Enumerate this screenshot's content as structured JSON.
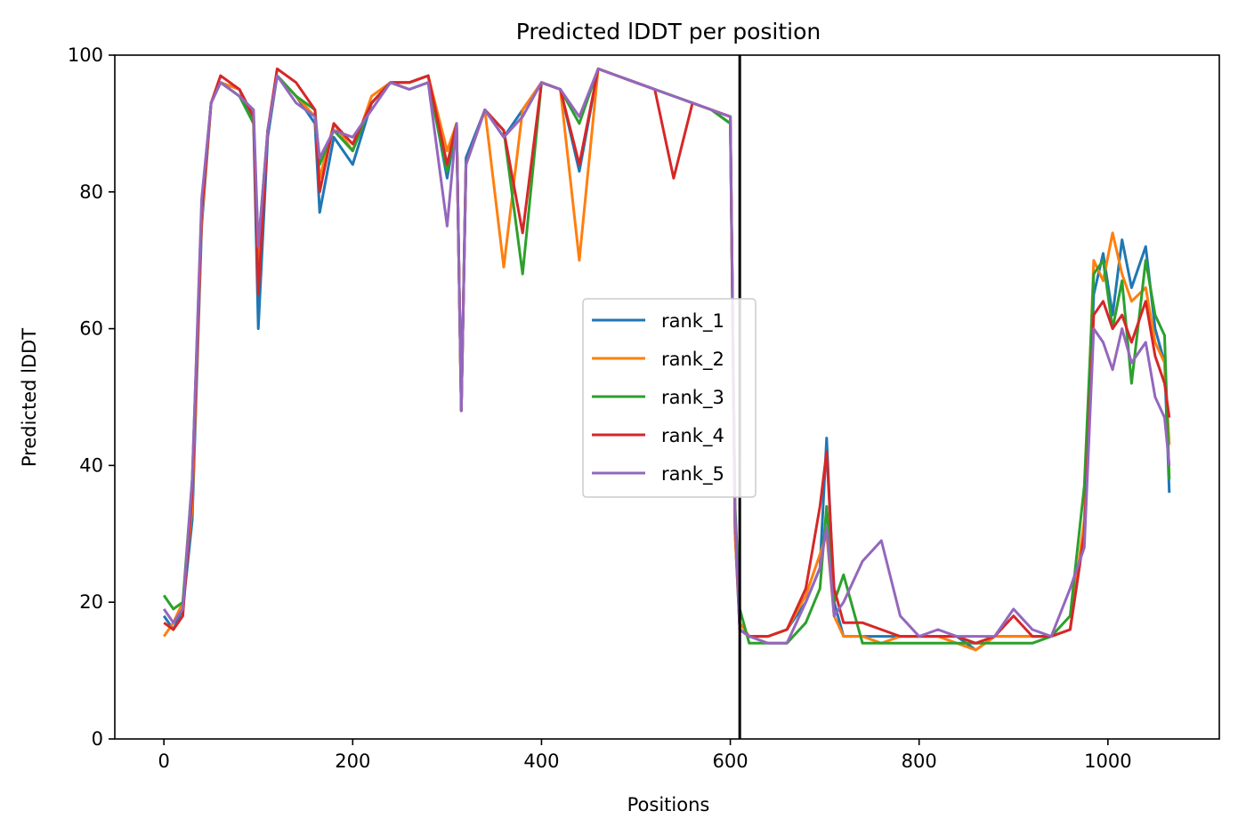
{
  "chart_data": {
    "type": "line",
    "title": "Predicted lDDT per position",
    "xlabel": "Positions",
    "ylabel": "Predicted lDDT",
    "xlim": [
      -52,
      1118
    ],
    "ylim": [
      0,
      100
    ],
    "xticks": [
      0,
      200,
      400,
      600,
      800,
      1000
    ],
    "yticks": [
      0,
      20,
      40,
      60,
      80,
      100
    ],
    "vline_x": 610,
    "vline_color": "#000000",
    "legend_position": "center",
    "series": [
      {
        "name": "rank_1",
        "color": "#1f77b4",
        "x": [
          0,
          10,
          20,
          30,
          40,
          50,
          60,
          80,
          95,
          100,
          110,
          120,
          140,
          160,
          165,
          180,
          200,
          220,
          240,
          260,
          280,
          300,
          310,
          315,
          320,
          340,
          360,
          380,
          400,
          420,
          440,
          460,
          480,
          500,
          520,
          540,
          560,
          580,
          600,
          605,
          610,
          620,
          640,
          660,
          680,
          695,
          702,
          710,
          720,
          740,
          760,
          780,
          800,
          820,
          840,
          860,
          880,
          900,
          920,
          940,
          960,
          975,
          985,
          995,
          1005,
          1015,
          1025,
          1040,
          1050,
          1060,
          1065
        ],
        "y": [
          18,
          16,
          19,
          32,
          75,
          93,
          96,
          95,
          90,
          60,
          88,
          97,
          94,
          90,
          77,
          88,
          84,
          93,
          96,
          96,
          97,
          82,
          90,
          48,
          85,
          92,
          88,
          92,
          96,
          95,
          83,
          98,
          97,
          96,
          95,
          94,
          93,
          92,
          90,
          30,
          16,
          15,
          15,
          16,
          20,
          25,
          44,
          20,
          15,
          15,
          15,
          15,
          15,
          15,
          15,
          13,
          15,
          15,
          15,
          15,
          16,
          30,
          65,
          71,
          62,
          73,
          66,
          72,
          60,
          55,
          36
        ]
      },
      {
        "name": "rank_2",
        "color": "#ff7f0e",
        "x": [
          0,
          10,
          20,
          30,
          40,
          50,
          60,
          80,
          95,
          100,
          110,
          120,
          140,
          160,
          165,
          180,
          200,
          220,
          240,
          260,
          280,
          300,
          310,
          315,
          320,
          340,
          360,
          380,
          400,
          420,
          440,
          460,
          480,
          500,
          520,
          540,
          560,
          580,
          600,
          605,
          610,
          620,
          640,
          660,
          680,
          695,
          702,
          710,
          720,
          740,
          760,
          780,
          800,
          820,
          840,
          860,
          880,
          900,
          920,
          940,
          960,
          975,
          985,
          995,
          1005,
          1015,
          1025,
          1040,
          1050,
          1060,
          1065
        ],
        "y": [
          15,
          17,
          20,
          34,
          76,
          93,
          96,
          95,
          91,
          70,
          89,
          97,
          94,
          91,
          82,
          90,
          86,
          94,
          96,
          96,
          97,
          86,
          90,
          48,
          84,
          92,
          69,
          92,
          96,
          95,
          70,
          98,
          97,
          96,
          95,
          94,
          93,
          92,
          91,
          30,
          17,
          15,
          15,
          16,
          21,
          27,
          30,
          18,
          15,
          15,
          14,
          15,
          15,
          15,
          14,
          13,
          15,
          15,
          15,
          15,
          16,
          32,
          70,
          67,
          74,
          68,
          64,
          66,
          58,
          55,
          43
        ]
      },
      {
        "name": "rank_3",
        "color": "#2ca02c",
        "x": [
          0,
          10,
          20,
          30,
          40,
          50,
          60,
          80,
          95,
          100,
          110,
          120,
          140,
          160,
          165,
          180,
          200,
          220,
          240,
          260,
          280,
          300,
          310,
          315,
          320,
          340,
          360,
          380,
          400,
          420,
          440,
          460,
          480,
          500,
          520,
          540,
          560,
          580,
          600,
          605,
          610,
          620,
          640,
          660,
          680,
          695,
          702,
          710,
          720,
          740,
          760,
          780,
          800,
          820,
          840,
          860,
          880,
          900,
          920,
          940,
          960,
          975,
          985,
          995,
          1005,
          1015,
          1025,
          1040,
          1050,
          1060,
          1065
        ],
        "y": [
          21,
          19,
          20,
          38,
          78,
          93,
          96,
          94,
          90,
          72,
          89,
          97,
          94,
          92,
          84,
          89,
          86,
          93,
          96,
          95,
          96,
          83,
          90,
          48,
          84,
          92,
          89,
          68,
          96,
          95,
          90,
          98,
          97,
          96,
          95,
          94,
          93,
          92,
          90,
          34,
          19,
          14,
          14,
          14,
          17,
          22,
          34,
          20,
          24,
          14,
          14,
          14,
          14,
          14,
          14,
          14,
          14,
          14,
          14,
          15,
          18,
          37,
          68,
          70,
          60,
          67,
          52,
          70,
          62,
          59,
          38
        ]
      },
      {
        "name": "rank_4",
        "color": "#d62728",
        "x": [
          0,
          10,
          20,
          30,
          40,
          50,
          60,
          80,
          95,
          100,
          110,
          120,
          140,
          160,
          165,
          180,
          200,
          220,
          240,
          260,
          280,
          300,
          310,
          315,
          320,
          340,
          360,
          380,
          400,
          420,
          440,
          460,
          480,
          500,
          520,
          540,
          560,
          580,
          600,
          605,
          610,
          620,
          640,
          660,
          680,
          695,
          702,
          710,
          720,
          740,
          760,
          780,
          800,
          820,
          840,
          860,
          880,
          900,
          920,
          940,
          960,
          975,
          985,
          995,
          1005,
          1015,
          1025,
          1040,
          1050,
          1060,
          1065
        ],
        "y": [
          17,
          16,
          18,
          36,
          77,
          93,
          97,
          95,
          91,
          65,
          89,
          98,
          96,
          92,
          80,
          90,
          87,
          93,
          96,
          96,
          97,
          84,
          90,
          48,
          84,
          92,
          89,
          74,
          96,
          95,
          84,
          98,
          97,
          96,
          95,
          82,
          93,
          92,
          91,
          32,
          16,
          15,
          15,
          16,
          22,
          34,
          42,
          22,
          17,
          17,
          16,
          15,
          15,
          15,
          15,
          14,
          15,
          18,
          15,
          15,
          16,
          30,
          62,
          64,
          60,
          62,
          58,
          64,
          56,
          52,
          47
        ]
      },
      {
        "name": "rank_5",
        "color": "#9467bd",
        "x": [
          0,
          10,
          20,
          30,
          40,
          50,
          60,
          80,
          95,
          100,
          110,
          120,
          140,
          160,
          165,
          180,
          200,
          220,
          240,
          260,
          280,
          300,
          310,
          315,
          320,
          340,
          360,
          380,
          400,
          420,
          440,
          460,
          480,
          500,
          520,
          540,
          560,
          580,
          600,
          605,
          610,
          620,
          640,
          660,
          680,
          695,
          702,
          710,
          720,
          740,
          760,
          780,
          800,
          820,
          840,
          860,
          880,
          900,
          920,
          940,
          960,
          975,
          985,
          995,
          1005,
          1015,
          1025,
          1040,
          1050,
          1060,
          1065
        ],
        "y": [
          19,
          17,
          19,
          38,
          79,
          93,
          96,
          94,
          92,
          72,
          89,
          97,
          93,
          91,
          85,
          89,
          88,
          92,
          96,
          95,
          96,
          75,
          90,
          48,
          84,
          92,
          88,
          91,
          96,
          95,
          91,
          98,
          97,
          96,
          95,
          94,
          93,
          92,
          91,
          33,
          16,
          15,
          14,
          14,
          20,
          25,
          31,
          18,
          20,
          26,
          29,
          18,
          15,
          16,
          15,
          15,
          15,
          19,
          16,
          15,
          22,
          28,
          60,
          58,
          54,
          60,
          55,
          58,
          50,
          47,
          40
        ]
      }
    ]
  }
}
